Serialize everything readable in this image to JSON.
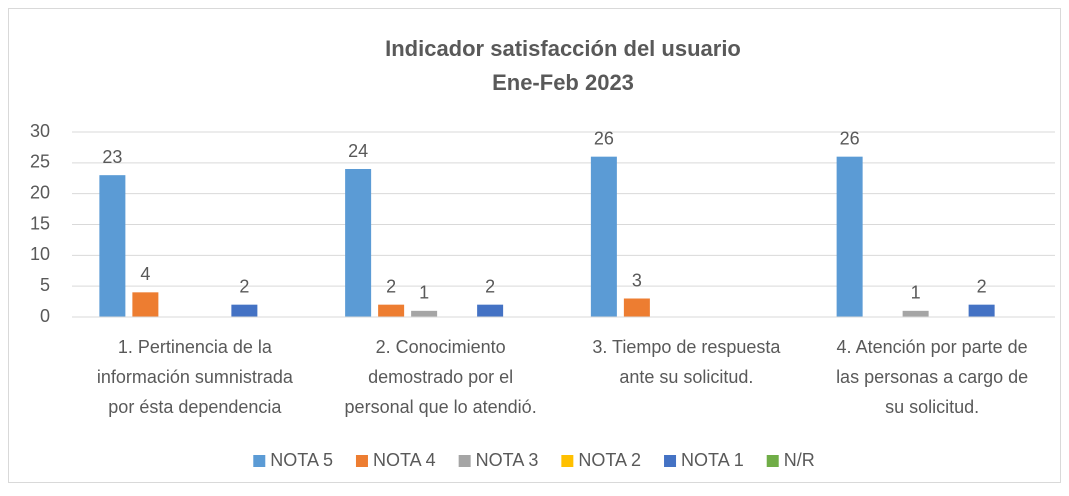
{
  "chart_data": {
    "type": "bar",
    "title": "Indicador satisfacción del usuario",
    "subtitle": "Ene-Feb 2023",
    "categories": [
      "1. Pertinencia de la información sumnistrada por ésta dependencia",
      "2. Conocimiento demostrado por el personal que lo atendió.",
      "3. Tiempo de respuesta ante su solicitud.",
      "4. Atención por parte de las personas a cargo de su solicitud."
    ],
    "series": [
      {
        "name": "NOTA 5",
        "color": "#5b9bd5",
        "values": [
          23,
          24,
          26,
          26
        ]
      },
      {
        "name": "NOTA 4",
        "color": "#ed7d31",
        "values": [
          4,
          2,
          3,
          null
        ]
      },
      {
        "name": "NOTA 3",
        "color": "#a5a5a5",
        "values": [
          null,
          1,
          null,
          1
        ]
      },
      {
        "name": "NOTA 2",
        "color": "#ffc000",
        "values": [
          null,
          null,
          null,
          null
        ]
      },
      {
        "name": "NOTA 1",
        "color": "#4472c4",
        "values": [
          2,
          2,
          null,
          2
        ]
      },
      {
        "name": "N/R",
        "color": "#70ad47",
        "values": [
          null,
          null,
          null,
          null
        ]
      }
    ],
    "ylim": [
      0,
      30
    ],
    "yticks": [
      0,
      5,
      10,
      15,
      20,
      25,
      30
    ],
    "grid": true,
    "legend": "bottom"
  }
}
